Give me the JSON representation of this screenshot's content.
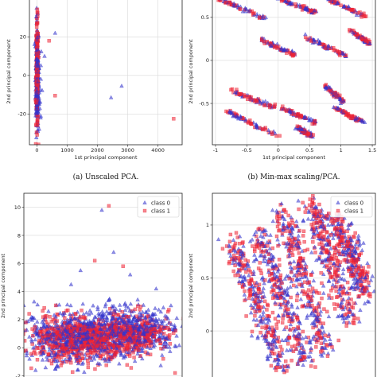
{
  "chart_data": [
    {
      "type": "scatter",
      "caption": "(a) Unscaled PCA.",
      "xlabel": "1st principal component",
      "ylabel": "2nd principal component",
      "xlim": [
        -250,
        4800
      ],
      "ylim": [
        -36,
        40
      ],
      "xticks": [
        0,
        1000,
        2000,
        3000,
        4000
      ],
      "yticks": [
        -20,
        0,
        20
      ],
      "legend": null,
      "series": [
        {
          "name": "class 0",
          "color": "#3333cc",
          "marker": "triangle",
          "clusters": [
            {
              "cx": 5,
              "cy": 0,
              "sx": 25,
              "sy": 14,
              "n": 220
            },
            {
              "cx": 60,
              "cy": -5,
              "sx": 40,
              "sy": 10,
              "n": 40
            }
          ],
          "points": [
            [
              2450,
              -11.5
            ],
            [
              2800,
              -5.5
            ],
            [
              250,
              10
            ],
            [
              600,
              22
            ],
            [
              120,
              -22
            ]
          ]
        },
        {
          "name": "class 1",
          "color": "#ee2233",
          "marker": "square",
          "clusters": [
            {
              "cx": 5,
              "cy": 0,
              "sx": 20,
              "sy": 14,
              "n": 200
            }
          ],
          "points": [
            [
              4520,
              -22.5
            ],
            [
              600,
              -10.5
            ],
            [
              400,
              18
            ]
          ]
        }
      ]
    },
    {
      "type": "scatter",
      "caption": "(b) Min-max scaling/PCA.",
      "xlabel": "1st principal component",
      "ylabel": "2nd principal component",
      "xlim": [
        -1.05,
        1.55
      ],
      "ylim": [
        -0.98,
        0.72
      ],
      "xticks": [
        -1.0,
        -0.5,
        0.0,
        0.5,
        1.0,
        1.5
      ],
      "yticks": [
        -0.5,
        0.0,
        0.5
      ],
      "legend": null,
      "strips": [
        {
          "x0": -0.95,
          "y0": 0.72,
          "x1": -0.2,
          "y1": 0.48
        },
        {
          "x0": 0.0,
          "y0": 0.72,
          "x1": 0.6,
          "y1": 0.55
        },
        {
          "x0": 0.8,
          "y0": 0.72,
          "x1": 1.4,
          "y1": 0.5
        },
        {
          "x0": -0.3,
          "y0": 0.25,
          "x1": 0.3,
          "y1": 0.05
        },
        {
          "x0": 0.4,
          "y0": 0.28,
          "x1": 1.1,
          "y1": 0.05
        },
        {
          "x0": 1.15,
          "y0": 0.35,
          "x1": 1.45,
          "y1": 0.2
        },
        {
          "x0": -0.75,
          "y0": -0.35,
          "x1": -0.05,
          "y1": -0.55
        },
        {
          "x0": -0.8,
          "y0": -0.6,
          "x1": 0.0,
          "y1": -0.88
        },
        {
          "x0": 0.05,
          "y0": -0.55,
          "x1": 0.6,
          "y1": -0.72
        },
        {
          "x0": 0.75,
          "y0": -0.3,
          "x1": 1.05,
          "y1": -0.48
        },
        {
          "x0": 0.9,
          "y0": -0.55,
          "x1": 1.35,
          "y1": -0.72
        },
        {
          "x0": 0.3,
          "y0": -0.78,
          "x1": 0.55,
          "y1": -0.88
        }
      ],
      "series": [
        {
          "name": "class 0",
          "color": "#3333cc",
          "marker": "triangle"
        },
        {
          "name": "class 1",
          "color": "#ee2233",
          "marker": "square"
        }
      ]
    },
    {
      "type": "scatter",
      "caption": "",
      "xlabel": "",
      "ylabel": "2nd principal component",
      "xlim": [
        -1.2,
        5.5
      ],
      "ylim": [
        -2.2,
        11.0
      ],
      "xticks": [],
      "yticks": [
        -2,
        0,
        2,
        4,
        6,
        8,
        10
      ],
      "legend": "top-right",
      "series": [
        {
          "name": "class 0",
          "color": "#3333cc",
          "marker": "triangle",
          "clusters": [
            {
              "cx": 1.2,
              "cy": 0.8,
              "sx": 1.2,
              "sy": 0.9,
              "n": 700
            },
            {
              "cx": 3.6,
              "cy": 1.2,
              "sx": 0.9,
              "sy": 0.8,
              "n": 450
            }
          ],
          "points": [
            [
              2.1,
              9.8
            ],
            [
              1.2,
              5.5
            ],
            [
              3.3,
              5.2
            ],
            [
              4.4,
              4.2
            ],
            [
              0.8,
              4.5
            ],
            [
              2.6,
              6.8
            ],
            [
              4.2,
              2.0
            ]
          ]
        },
        {
          "name": "class 1",
          "color": "#ee2233",
          "marker": "square",
          "clusters": [
            {
              "cx": 1.0,
              "cy": 0.6,
              "sx": 1.1,
              "sy": 0.8,
              "n": 550
            },
            {
              "cx": 3.2,
              "cy": 1.0,
              "sx": 0.9,
              "sy": 0.7,
              "n": 350
            }
          ],
          "points": [
            [
              2.4,
              10.1
            ],
            [
              5.2,
              -1.8
            ],
            [
              3.0,
              5.8
            ],
            [
              1.8,
              6.2
            ]
          ]
        }
      ]
    },
    {
      "type": "scatter",
      "caption": "",
      "xlabel": "",
      "ylabel": "2nd principal component",
      "xlim": [
        -0.6,
        1.4
      ],
      "ylim": [
        -0.45,
        1.3
      ],
      "xticks": [],
      "yticks": [
        0.0,
        0.5,
        1.0
      ],
      "legend": "top-right",
      "bands": [
        {
          "x0": -0.35,
          "y0": 0.85,
          "x1": 0.25,
          "y1": -0.35
        },
        {
          "x0": -0.05,
          "y0": 0.95,
          "x1": 0.55,
          "y1": -0.3
        },
        {
          "x0": 0.25,
          "y0": 1.15,
          "x1": 0.8,
          "y1": -0.2
        },
        {
          "x0": 0.6,
          "y0": 1.2,
          "x1": 1.1,
          "y1": 0.1
        },
        {
          "x0": 0.9,
          "y0": 1.1,
          "x1": 1.3,
          "y1": 0.35
        }
      ],
      "series": [
        {
          "name": "class 0",
          "color": "#3333cc",
          "marker": "triangle"
        },
        {
          "name": "class 1",
          "color": "#ee2233",
          "marker": "square"
        }
      ]
    }
  ]
}
